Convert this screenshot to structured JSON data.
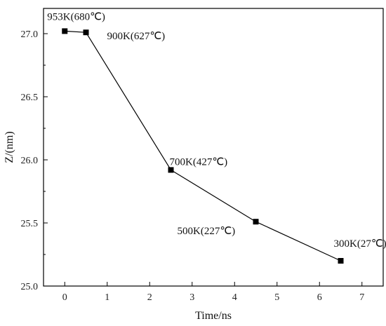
{
  "chart_data": {
    "type": "line",
    "title": "",
    "xlabel": "Time/ns",
    "ylabel": "Z/(nm)",
    "xlim": [
      -0.5,
      7.5
    ],
    "ylim": [
      25.0,
      27.2
    ],
    "xticks": [
      "0",
      "1",
      "2",
      "3",
      "4",
      "5",
      "6",
      "7"
    ],
    "yticks": [
      "25.0",
      "25.5",
      "26.0",
      "26.5",
      "27.0"
    ],
    "grid": false,
    "legend": "none",
    "line_color": "#000000",
    "marker": "square",
    "series": [
      {
        "x": [
          0,
          0.5,
          2.5,
          4.5,
          6.5
        ],
        "y": [
          27.02,
          27.01,
          25.92,
          25.51,
          25.2
        ],
        "labels": [
          "953K(680℃)",
          "900K(627℃)",
          "700K(427℃)",
          "500K(227℃)",
          "300K(27℃)"
        ]
      }
    ]
  }
}
